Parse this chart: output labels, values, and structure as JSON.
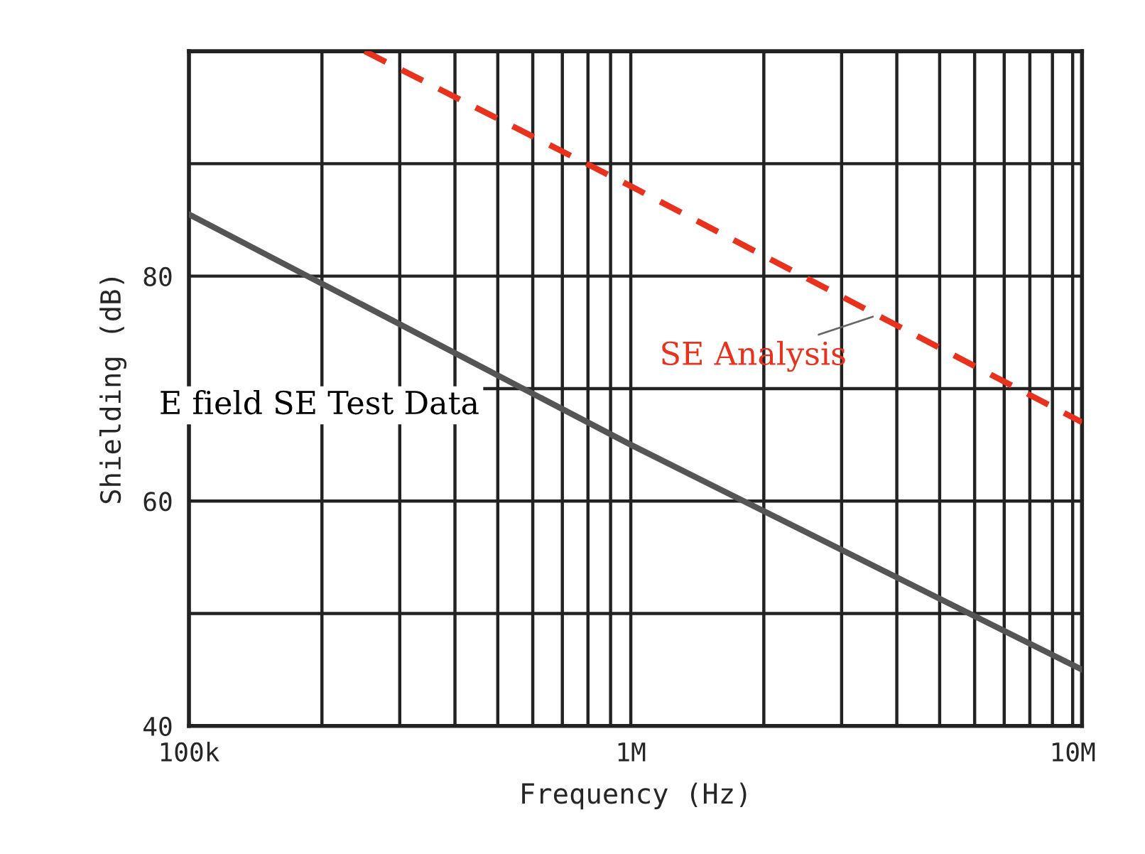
{
  "chart_data": {
    "type": "line",
    "xlabel": "Frequency (Hz)",
    "ylabel": "Shielding (dB)",
    "log": "x",
    "xlim": [
      100000,
      10500000
    ],
    "ylim": [
      40,
      100
    ],
    "xticks": [
      {
        "value": 100000,
        "label": "100k"
      },
      {
        "value": 200000,
        "label": null
      },
      {
        "value": 300000,
        "label": null
      },
      {
        "value": 400000,
        "label": null
      },
      {
        "value": 500000,
        "label": null
      },
      {
        "value": 600000,
        "label": null
      },
      {
        "value": 700000,
        "label": null
      },
      {
        "value": 800000,
        "label": null
      },
      {
        "value": 900000,
        "label": null
      },
      {
        "value": 1000000,
        "label": "1M"
      },
      {
        "value": 2000000,
        "label": null
      },
      {
        "value": 3000000,
        "label": null
      },
      {
        "value": 4000000,
        "label": null
      },
      {
        "value": 5000000,
        "label": null
      },
      {
        "value": 6000000,
        "label": null
      },
      {
        "value": 7000000,
        "label": null
      },
      {
        "value": 8000000,
        "label": null
      },
      {
        "value": 9000000,
        "label": null
      },
      {
        "value": 10000000,
        "label": "10M"
      }
    ],
    "yticks": [
      40,
      {
        "value": 50,
        "label": null
      },
      60,
      {
        "value": 70,
        "label": null
      },
      80,
      {
        "value": 90,
        "label": null
      }
    ],
    "grid": true,
    "series": [
      {
        "color": "#555555",
        "line_style": "solid",
        "x": [
          100000,
          1000000,
          10500000
        ],
        "values": [
          85.5,
          65,
          45
        ]
      },
      {
        "color": "#e8321e",
        "line_style": "dashed",
        "x": [
          250000,
          1000000,
          10500000
        ],
        "values": [
          100,
          88,
          67
        ]
      }
    ],
    "annotations": [
      {
        "text": "E field SE Test Data",
        "x": 400000,
        "y": 73
      },
      {
        "text": "SE Analysis",
        "x": 3600000,
        "y": 76.5
      }
    ]
  }
}
